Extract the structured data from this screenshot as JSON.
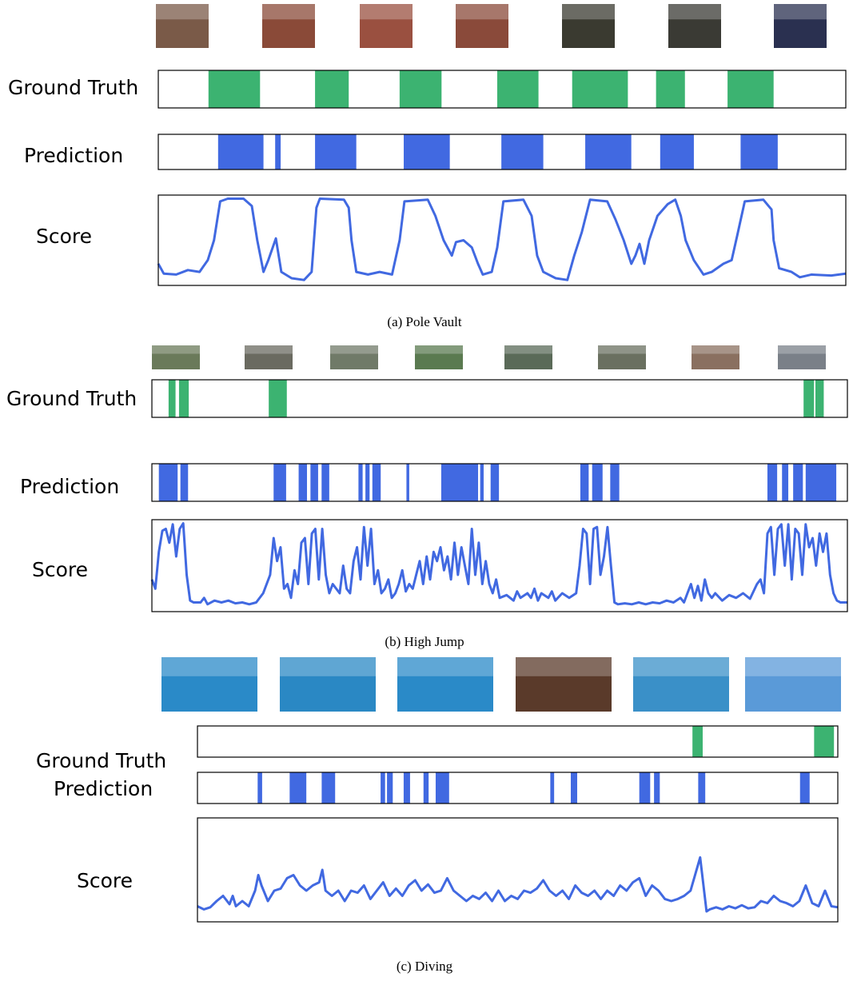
{
  "panels": [
    {
      "caption": "(a) Pole Vault",
      "labels": {
        "ground_truth": "Ground Truth",
        "prediction": "Prediction",
        "score": "Score"
      },
      "xlim": [
        0,
        100
      ],
      "ylim": [
        0,
        1
      ],
      "ground_truth": [
        [
          7.3,
          14.8
        ],
        [
          22.8,
          27.7
        ],
        [
          35.1,
          41.2
        ],
        [
          49.3,
          55.3
        ],
        [
          60.2,
          68.3
        ],
        [
          72.4,
          76.6
        ],
        [
          82.8,
          89.5
        ]
      ],
      "prediction": [
        [
          8.7,
          15.3
        ],
        [
          17.0,
          17.8
        ],
        [
          22.8,
          28.8
        ],
        [
          35.7,
          42.4
        ],
        [
          49.9,
          56.0
        ],
        [
          62.1,
          68.8
        ],
        [
          73.0,
          77.9
        ],
        [
          84.7,
          90.1
        ]
      ],
      "score": {
        "x": [
          0,
          0.8,
          2.6,
          4.3,
          6.0,
          7.2,
          8.1,
          9.0,
          10.1,
          12.4,
          13.6,
          14.4,
          15.3,
          16.0,
          17.1,
          17.9,
          19.4,
          21.2,
          22.3,
          23.0,
          23.5,
          27.0,
          27.7,
          28.1,
          28.8,
          30.5,
          32.2,
          34.0,
          35.1,
          35.8,
          39.2,
          40.3,
          41.5,
          42.7,
          43.3,
          44.4,
          45.6,
          46.5,
          47.2,
          48.5,
          49.3,
          50.2,
          53.1,
          54.3,
          55.1,
          56.0,
          57.8,
          59.5,
          60.5,
          61.6,
          62.8,
          65.3,
          66.5,
          67.7,
          68.8,
          69.4,
          70.0,
          70.7,
          71.4,
          72.6,
          74.1,
          75.2,
          76.0,
          76.7,
          77.9,
          79.3,
          80.5,
          82.2,
          83.4,
          84.2,
          85.3,
          88.0,
          89.2,
          89.5,
          90.3,
          92.1,
          93.3,
          95.0,
          97.9,
          100
        ],
        "values": [
          0.24,
          0.13,
          0.12,
          0.17,
          0.15,
          0.28,
          0.5,
          0.93,
          0.96,
          0.96,
          0.88,
          0.5,
          0.15,
          0.28,
          0.52,
          0.15,
          0.08,
          0.06,
          0.15,
          0.86,
          0.96,
          0.95,
          0.86,
          0.5,
          0.15,
          0.12,
          0.15,
          0.12,
          0.5,
          0.93,
          0.95,
          0.77,
          0.5,
          0.33,
          0.48,
          0.5,
          0.42,
          0.24,
          0.12,
          0.15,
          0.42,
          0.93,
          0.95,
          0.77,
          0.33,
          0.15,
          0.08,
          0.06,
          0.33,
          0.59,
          0.95,
          0.93,
          0.73,
          0.5,
          0.24,
          0.33,
          0.46,
          0.24,
          0.5,
          0.77,
          0.9,
          0.95,
          0.77,
          0.5,
          0.28,
          0.12,
          0.15,
          0.24,
          0.28,
          0.55,
          0.93,
          0.95,
          0.84,
          0.5,
          0.19,
          0.15,
          0.09,
          0.12,
          0.11,
          0.13
        ]
      }
    },
    {
      "caption": "(b) High Jump",
      "labels": {
        "ground_truth": "Ground Truth",
        "prediction": "Prediction",
        "score": "Score"
      },
      "xlim": [
        0,
        100
      ],
      "ylim": [
        0,
        1
      ],
      "ground_truth": [
        [
          2.4,
          3.4
        ],
        [
          3.9,
          5.3
        ],
        [
          16.8,
          19.4
        ],
        [
          93.7,
          95.2
        ],
        [
          95.4,
          96.6
        ]
      ],
      "prediction": [
        [
          1.0,
          3.7
        ],
        [
          4.1,
          5.2
        ],
        [
          17.5,
          19.3
        ],
        [
          21.1,
          22.3
        ],
        [
          22.8,
          23.9
        ],
        [
          24.4,
          25.5
        ],
        [
          29.7,
          30.3
        ],
        [
          30.7,
          31.3
        ],
        [
          31.7,
          32.9
        ],
        [
          36.6,
          37.0
        ],
        [
          41.6,
          46.9
        ],
        [
          47.2,
          47.7
        ],
        [
          48.7,
          49.9
        ],
        [
          61.6,
          62.8
        ],
        [
          63.3,
          64.8
        ],
        [
          65.9,
          67.2
        ],
        [
          88.5,
          89.9
        ],
        [
          90.6,
          91.5
        ],
        [
          92.2,
          93.6
        ],
        [
          94.0,
          98.4
        ]
      ],
      "score": {
        "x": [
          0,
          0.5,
          1,
          1.5,
          2,
          2.5,
          3,
          3.5,
          4,
          4.5,
          5,
          5.5,
          6,
          7,
          7.5,
          8,
          9,
          10,
          11,
          12,
          13,
          14,
          15,
          16,
          17,
          17.5,
          18,
          18.5,
          19,
          19.5,
          20,
          20.5,
          21,
          21.5,
          22,
          22.5,
          23,
          23.5,
          24,
          24.5,
          25,
          25.5,
          26,
          27,
          27.5,
          28,
          28.5,
          29,
          29.5,
          30,
          30.5,
          31,
          31.5,
          32,
          32.5,
          33,
          33.5,
          34,
          34.5,
          35,
          35.5,
          36,
          36.5,
          37,
          37.5,
          38,
          38.5,
          39,
          39.5,
          40,
          40.5,
          41,
          41.5,
          42,
          42.5,
          43,
          43.5,
          44,
          44.5,
          45,
          45.5,
          46,
          46.5,
          47,
          47.5,
          48,
          48.5,
          49,
          49.5,
          50,
          51,
          52,
          52.5,
          53,
          54,
          54.5,
          55,
          55.5,
          56,
          57,
          57.5,
          58,
          59,
          60,
          61,
          61.5,
          62,
          62.5,
          63,
          63.5,
          64,
          64.5,
          65,
          65.5,
          66,
          66.5,
          67,
          68,
          69,
          70,
          71,
          72,
          73,
          74,
          75,
          76,
          76.5,
          77,
          77.5,
          78,
          78.5,
          79,
          79.5,
          80,
          80.5,
          81,
          82,
          83,
          84,
          85,
          86,
          87,
          87.5,
          88,
          88.5,
          89,
          89.5,
          90,
          90.5,
          91,
          91.5,
          92,
          92.5,
          93,
          93.5,
          94,
          94.5,
          95,
          95.5,
          96,
          96.5,
          97,
          97.5,
          98,
          98.5,
          99,
          100
        ],
        "values": [
          0.35,
          0.25,
          0.65,
          0.88,
          0.9,
          0.75,
          0.95,
          0.6,
          0.9,
          0.96,
          0.4,
          0.12,
          0.1,
          0.1,
          0.15,
          0.08,
          0.12,
          0.1,
          0.12,
          0.09,
          0.1,
          0.08,
          0.1,
          0.2,
          0.4,
          0.8,
          0.55,
          0.7,
          0.25,
          0.3,
          0.15,
          0.45,
          0.3,
          0.75,
          0.8,
          0.3,
          0.85,
          0.9,
          0.35,
          0.9,
          0.4,
          0.2,
          0.3,
          0.2,
          0.5,
          0.25,
          0.2,
          0.55,
          0.7,
          0.35,
          0.92,
          0.5,
          0.9,
          0.3,
          0.45,
          0.2,
          0.25,
          0.35,
          0.15,
          0.2,
          0.3,
          0.45,
          0.22,
          0.3,
          0.25,
          0.4,
          0.55,
          0.3,
          0.6,
          0.35,
          0.65,
          0.55,
          0.7,
          0.45,
          0.6,
          0.35,
          0.75,
          0.4,
          0.7,
          0.5,
          0.3,
          0.9,
          0.4,
          0.75,
          0.3,
          0.55,
          0.3,
          0.2,
          0.35,
          0.15,
          0.18,
          0.12,
          0.22,
          0.15,
          0.2,
          0.15,
          0.25,
          0.12,
          0.2,
          0.15,
          0.22,
          0.12,
          0.2,
          0.15,
          0.2,
          0.5,
          0.9,
          0.85,
          0.3,
          0.9,
          0.92,
          0.4,
          0.6,
          0.92,
          0.5,
          0.1,
          0.08,
          0.09,
          0.08,
          0.1,
          0.08,
          0.1,
          0.09,
          0.12,
          0.1,
          0.15,
          0.1,
          0.2,
          0.3,
          0.15,
          0.28,
          0.12,
          0.35,
          0.2,
          0.15,
          0.2,
          0.12,
          0.18,
          0.15,
          0.2,
          0.14,
          0.3,
          0.35,
          0.2,
          0.85,
          0.92,
          0.4,
          0.9,
          0.95,
          0.5,
          0.95,
          0.35,
          0.9,
          0.85,
          0.4,
          0.95,
          0.7,
          0.8,
          0.5,
          0.85,
          0.65,
          0.85,
          0.4,
          0.2,
          0.12,
          0.1,
          0.1
        ]
      }
    },
    {
      "caption": "(c) Diving",
      "labels": {
        "ground_truth": "Ground Truth",
        "prediction": "Prediction",
        "score": "Score"
      },
      "xlim": [
        0,
        100
      ],
      "ylim": [
        0,
        1
      ],
      "ground_truth": [
        [
          77.3,
          78.9
        ],
        [
          96.3,
          99.4
        ]
      ],
      "prediction": [
        [
          9.4,
          10.1
        ],
        [
          14.4,
          17.0
        ],
        [
          19.4,
          21.5
        ],
        [
          28.6,
          29.3
        ],
        [
          29.6,
          30.5
        ],
        [
          32.2,
          33.2
        ],
        [
          35.3,
          36.1
        ],
        [
          37.2,
          39.3
        ],
        [
          55.1,
          55.7
        ],
        [
          58.3,
          59.3
        ],
        [
          69.0,
          70.7
        ],
        [
          71.3,
          72.2
        ],
        [
          78.2,
          79.3
        ],
        [
          94.1,
          95.6
        ]
      ],
      "score": {
        "x": [
          0,
          1,
          2,
          3,
          4,
          5,
          5.5,
          6,
          7,
          8,
          9,
          9.5,
          10,
          11,
          12,
          13,
          14,
          15,
          16,
          17,
          18,
          19,
          19.5,
          20,
          21,
          22,
          23,
          24,
          25,
          26,
          27,
          28,
          29,
          30,
          31,
          32,
          33,
          34,
          35,
          36,
          37,
          38,
          39,
          40,
          41,
          42,
          43,
          44,
          45,
          46,
          47,
          48,
          49,
          50,
          51,
          52,
          53,
          54,
          55,
          56,
          57,
          58,
          59,
          60,
          61,
          62,
          63,
          64,
          65,
          66,
          67,
          68,
          69,
          70,
          71,
          72,
          73,
          74,
          75,
          76,
          77,
          78.5,
          79.5,
          80,
          81,
          82,
          83,
          84,
          85,
          86,
          87,
          88,
          89,
          90,
          91,
          92,
          93,
          94,
          95,
          96,
          97,
          98,
          99,
          100
        ],
        "values": [
          0.15,
          0.12,
          0.14,
          0.2,
          0.25,
          0.17,
          0.25,
          0.15,
          0.2,
          0.15,
          0.3,
          0.45,
          0.35,
          0.2,
          0.3,
          0.32,
          0.42,
          0.45,
          0.35,
          0.3,
          0.35,
          0.38,
          0.5,
          0.3,
          0.25,
          0.3,
          0.2,
          0.3,
          0.28,
          0.35,
          0.22,
          0.3,
          0.38,
          0.25,
          0.32,
          0.25,
          0.35,
          0.4,
          0.3,
          0.36,
          0.28,
          0.3,
          0.42,
          0.3,
          0.25,
          0.2,
          0.25,
          0.22,
          0.28,
          0.2,
          0.3,
          0.2,
          0.25,
          0.22,
          0.3,
          0.28,
          0.32,
          0.4,
          0.3,
          0.25,
          0.3,
          0.22,
          0.35,
          0.28,
          0.25,
          0.3,
          0.22,
          0.3,
          0.25,
          0.35,
          0.3,
          0.38,
          0.42,
          0.25,
          0.35,
          0.3,
          0.22,
          0.2,
          0.22,
          0.25,
          0.3,
          0.62,
          0.1,
          0.12,
          0.14,
          0.12,
          0.15,
          0.13,
          0.16,
          0.13,
          0.14,
          0.2,
          0.18,
          0.25,
          0.2,
          0.18,
          0.15,
          0.2,
          0.35,
          0.18,
          0.15,
          0.3,
          0.15,
          0.14
        ]
      }
    }
  ]
}
